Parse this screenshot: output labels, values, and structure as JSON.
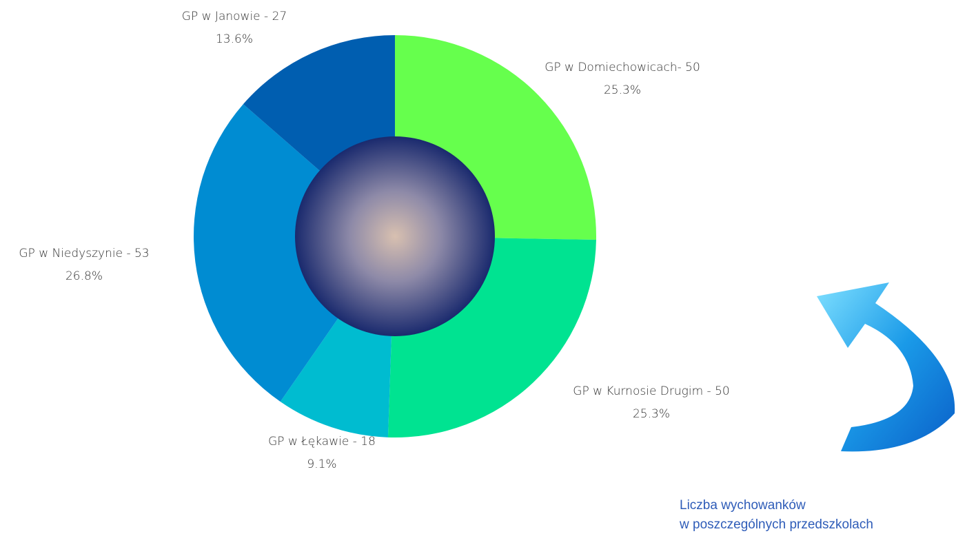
{
  "chart_data": {
    "type": "donut",
    "categories": [
      "GP w Domiechowicach- 50",
      "GP w Kurnosie Drugim - 50",
      "GP w Łękawie - 18",
      "GP w Niedyszynie - 53",
      "GP w Janowie - 27"
    ],
    "values": [
      25.3,
      25.3,
      9.1,
      26.8,
      13.6
    ],
    "value_labels": [
      "25.3%",
      "25.3%",
      "9.1%",
      "26.8%",
      "13.6%"
    ],
    "colors": [
      "#66ff4d",
      "#00e391",
      "#00bcd0",
      "#008cd2",
      "#005eb0"
    ],
    "caption": [
      "Liczba wychowanków",
      "w poszczególnych przedszkolach"
    ]
  }
}
